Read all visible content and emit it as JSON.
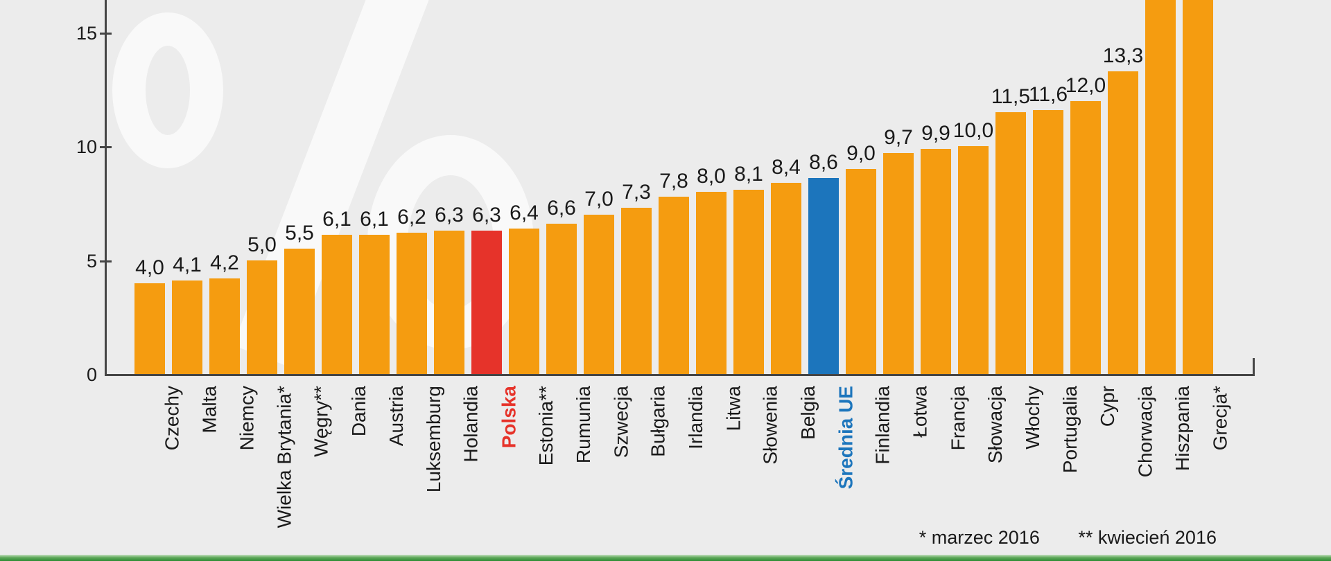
{
  "page": {
    "background_color": "#ECECEC",
    "text_color": "#1A1A1A",
    "axis_color": "#454545"
  },
  "watermark": {
    "symbol": "%",
    "name": "percent-watermark",
    "color": "#F9F9F9"
  },
  "chart_data": {
    "type": "bar",
    "title": "",
    "xlabel": "",
    "ylabel": "",
    "unit": "%",
    "decimal_separator": ",",
    "grid": false,
    "legend": null,
    "yticks": [
      0,
      5,
      10,
      15
    ],
    "ylim_visible": [
      0,
      16.4
    ],
    "colors": {
      "default": "#F59C10",
      "poland": "#E6332A",
      "eu-average": "#1C75BC"
    },
    "bars": [
      {
        "label": "Czechy",
        "value": 4.0,
        "value_label": "4,0",
        "role": "default",
        "clipped": false
      },
      {
        "label": "Malta",
        "value": 4.1,
        "value_label": "4,1",
        "role": "default",
        "clipped": false
      },
      {
        "label": "Niemcy",
        "value": 4.2,
        "value_label": "4,2",
        "role": "default",
        "clipped": false
      },
      {
        "label": "Wielka Brytania*",
        "value": 5.0,
        "value_label": "5,0",
        "role": "default",
        "clipped": false
      },
      {
        "label": "Węgry**",
        "value": 5.5,
        "value_label": "5,5",
        "role": "default",
        "clipped": false
      },
      {
        "label": "Dania",
        "value": 6.1,
        "value_label": "6,1",
        "role": "default",
        "clipped": false
      },
      {
        "label": "Austria",
        "value": 6.1,
        "value_label": "6,1",
        "role": "default",
        "clipped": false
      },
      {
        "label": "Luksemburg",
        "value": 6.2,
        "value_label": "6,2",
        "role": "default",
        "clipped": false
      },
      {
        "label": "Holandia",
        "value": 6.3,
        "value_label": "6,3",
        "role": "default",
        "clipped": false
      },
      {
        "label": "Polska",
        "value": 6.3,
        "value_label": "6,3",
        "role": "poland",
        "clipped": false
      },
      {
        "label": "Estonia**",
        "value": 6.4,
        "value_label": "6,4",
        "role": "default",
        "clipped": false
      },
      {
        "label": "Rumunia",
        "value": 6.6,
        "value_label": "6,6",
        "role": "default",
        "clipped": false
      },
      {
        "label": "Szwecja",
        "value": 7.0,
        "value_label": "7,0",
        "role": "default",
        "clipped": false
      },
      {
        "label": "Bułgaria",
        "value": 7.3,
        "value_label": "7,3",
        "role": "default",
        "clipped": false
      },
      {
        "label": "Irlandia",
        "value": 7.8,
        "value_label": "7,8",
        "role": "default",
        "clipped": false
      },
      {
        "label": "Litwa",
        "value": 8.0,
        "value_label": "8,0",
        "role": "default",
        "clipped": false
      },
      {
        "label": "Słowenia",
        "value": 8.1,
        "value_label": "8,1",
        "role": "default",
        "clipped": false
      },
      {
        "label": "Belgia",
        "value": 8.4,
        "value_label": "8,4",
        "role": "default",
        "clipped": false
      },
      {
        "label": "Średnia UE",
        "value": 8.6,
        "value_label": "8,6",
        "role": "eu-average",
        "clipped": false
      },
      {
        "label": "Finlandia",
        "value": 9.0,
        "value_label": "9,0",
        "role": "default",
        "clipped": false
      },
      {
        "label": "Łotwa",
        "value": 9.7,
        "value_label": "9,7",
        "role": "default",
        "clipped": false
      },
      {
        "label": "Francja",
        "value": 9.9,
        "value_label": "9,9",
        "role": "default",
        "clipped": false
      },
      {
        "label": "Słowacja",
        "value": 10.0,
        "value_label": "10,0",
        "role": "default",
        "clipped": false
      },
      {
        "label": "Włochy",
        "value": 11.5,
        "value_label": "11,5",
        "role": "default",
        "clipped": false
      },
      {
        "label": "Portugalia",
        "value": 11.6,
        "value_label": "11,6",
        "role": "default",
        "clipped": false
      },
      {
        "label": "Cypr",
        "value": 12.0,
        "value_label": "12,0",
        "role": "default",
        "clipped": false
      },
      {
        "label": "Chorwacja",
        "value": 13.3,
        "value_label": "13,3",
        "role": "default",
        "clipped": false
      },
      {
        "label": "Hiszpania",
        "value": null,
        "value_label": "",
        "role": "default",
        "clipped": true
      },
      {
        "label": "Grecja*",
        "value": null,
        "value_label": "",
        "role": "default",
        "clipped": true
      }
    ]
  },
  "footnote": {
    "asterisk": "* marzec 2016",
    "double_asterisk": "** kwiecień 2016"
  },
  "footer_bar": {
    "gradient": [
      "#C2DFBC",
      "#5FA85A",
      "#2E8C34"
    ]
  }
}
